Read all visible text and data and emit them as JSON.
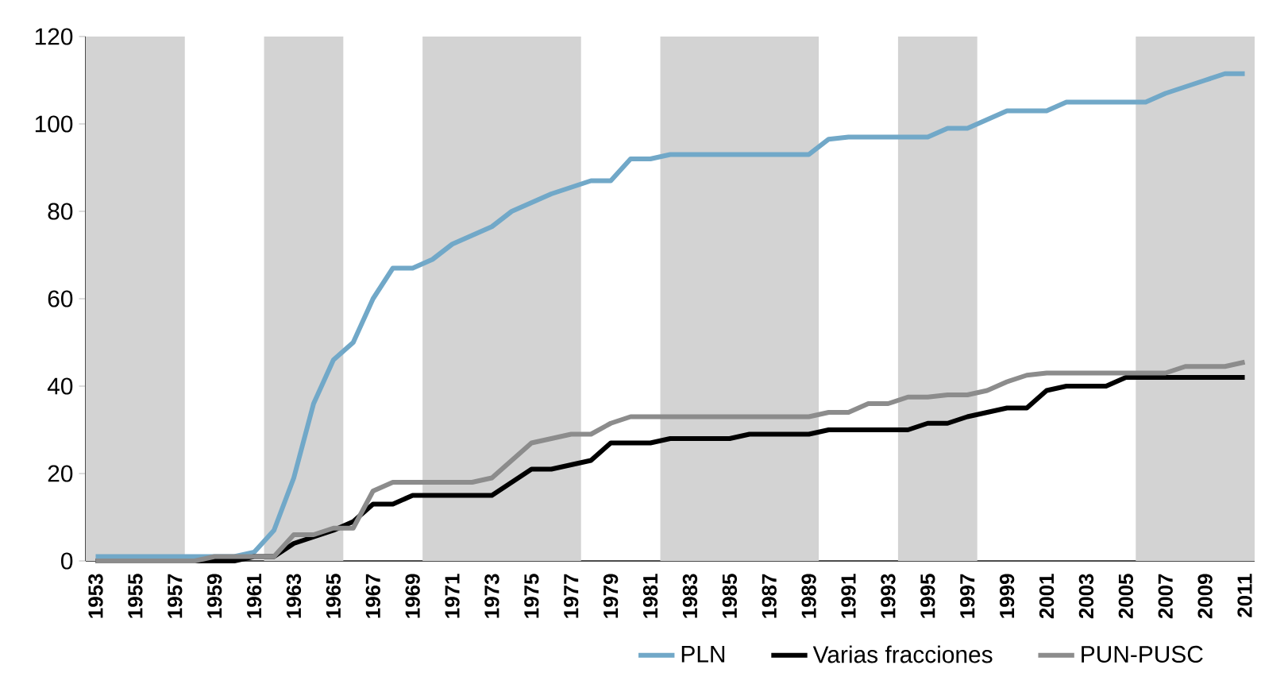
{
  "chart_data": {
    "type": "line",
    "x": [
      1953,
      1954,
      1955,
      1956,
      1957,
      1958,
      1959,
      1960,
      1961,
      1962,
      1963,
      1964,
      1965,
      1966,
      1967,
      1968,
      1969,
      1970,
      1971,
      1972,
      1973,
      1974,
      1975,
      1976,
      1977,
      1978,
      1979,
      1980,
      1981,
      1982,
      1983,
      1984,
      1985,
      1986,
      1987,
      1988,
      1989,
      1990,
      1991,
      1992,
      1993,
      1994,
      1995,
      1996,
      1997,
      1998,
      1999,
      2000,
      2001,
      2002,
      2003,
      2004,
      2005,
      2006,
      2007,
      2008,
      2009,
      2010,
      2011
    ],
    "series": [
      {
        "name": "PLN",
        "color": "#71a8c8",
        "values": [
          1,
          1,
          1,
          1,
          1,
          1,
          1,
          1,
          2,
          7,
          19,
          36,
          46,
          50,
          60,
          67,
          67,
          69,
          72.5,
          74.5,
          76.5,
          80,
          82,
          84,
          85.5,
          87,
          87,
          92,
          92,
          93,
          93,
          93,
          93,
          93,
          93,
          93,
          93,
          96.5,
          97,
          97,
          97,
          97,
          97,
          99,
          99,
          101,
          103,
          103,
          103,
          105,
          105,
          105,
          105,
          105,
          107,
          108.5,
          110,
          111.5,
          111.5
        ]
      },
      {
        "name": "Varias fracciones",
        "color": "#000000",
        "values": [
          0,
          0,
          0,
          0,
          0,
          0,
          0,
          0,
          1,
          1,
          4,
          5.5,
          7,
          9,
          13,
          13,
          15,
          15,
          15,
          15,
          15,
          18,
          21,
          21,
          22,
          23,
          27,
          27,
          27,
          28,
          28,
          28,
          28,
          29,
          29,
          29,
          29,
          30,
          30,
          30,
          30,
          30,
          31.5,
          31.5,
          33,
          34,
          35,
          35,
          39,
          40,
          40,
          40,
          42,
          42,
          42,
          42,
          42,
          42,
          42
        ]
      },
      {
        "name": "PUN-PUSC",
        "color": "#8c8c8c",
        "values": [
          0,
          0,
          0,
          0,
          0,
          0,
          1,
          1,
          1,
          1,
          6,
          6,
          7.5,
          7.5,
          16,
          18,
          18,
          18,
          18,
          18,
          19,
          23,
          27,
          28,
          29,
          29,
          31.5,
          33,
          33,
          33,
          33,
          33,
          33,
          33,
          33,
          33,
          33,
          34,
          34,
          36,
          36,
          37.5,
          37.5,
          38,
          38,
          39,
          41,
          42.5,
          43,
          43,
          43,
          43,
          43,
          43,
          43,
          44.5,
          44.5,
          44.5,
          45.5
        ]
      }
    ],
    "bands": [
      {
        "axis": "x",
        "from": 1952.5,
        "to": 1957.5,
        "color": "#d3d3d3"
      },
      {
        "axis": "x",
        "from": 1961.5,
        "to": 1965.5,
        "color": "#d3d3d3"
      },
      {
        "axis": "x",
        "from": 1969.5,
        "to": 1977.5,
        "color": "#d3d3d3"
      },
      {
        "axis": "x",
        "from": 1981.5,
        "to": 1989.5,
        "color": "#d3d3d3"
      },
      {
        "axis": "x",
        "from": 1993.5,
        "to": 1997.5,
        "color": "#d3d3d3"
      },
      {
        "axis": "x",
        "from": 2005.5,
        "to": 2011.5,
        "color": "#d3d3d3"
      }
    ],
    "xlim": [
      1952.5,
      2011.5
    ],
    "xticks": [
      1953,
      1955,
      1957,
      1959,
      1961,
      1963,
      1965,
      1967,
      1969,
      1971,
      1973,
      1975,
      1977,
      1979,
      1981,
      1983,
      1985,
      1987,
      1989,
      1991,
      1993,
      1995,
      1997,
      1999,
      2001,
      2003,
      2005,
      2007,
      2009,
      2011
    ],
    "ylim": [
      0,
      120
    ],
    "yticks": [
      0,
      20,
      40,
      60,
      80,
      100,
      120
    ],
    "legend": "bottom",
    "grid": false
  }
}
